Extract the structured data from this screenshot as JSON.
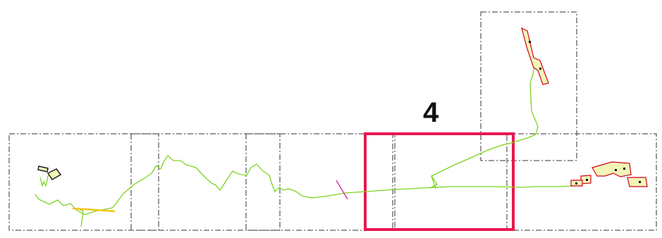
{
  "map": {
    "highlighted_sheet_label": "4",
    "colors": {
      "sheet_frame": "#333333",
      "highlight_frame": "#e8174f",
      "route_line": "#7ed321",
      "parcel_fill": "#f2f5b8",
      "parcel_edge": "#d0021b",
      "yellow_segment": "#f5c518",
      "magenta_marker": "#d63aa6"
    },
    "sheets": [
      {
        "name": "sheet-frame-1",
        "highlighted": false
      },
      {
        "name": "sheet-frame-2",
        "highlighted": false
      },
      {
        "name": "sheet-frame-3",
        "highlighted": false
      },
      {
        "name": "sheet-frame-4",
        "highlighted": true
      },
      {
        "name": "sheet-frame-5",
        "highlighted": false
      },
      {
        "name": "sheet-frame-6",
        "highlighted": false
      }
    ]
  }
}
